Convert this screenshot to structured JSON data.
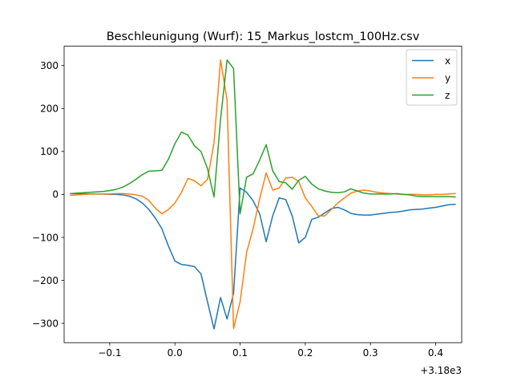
{
  "chart_data": {
    "type": "line",
    "title": "Beschleunigung (Wurf): 15_Markus_lostcm_100Hz.csv",
    "xlabel": "",
    "ylabel": "",
    "x_offset_label": "+3.18e3",
    "xlim": [
      -0.17,
      0.44
    ],
    "ylim": [
      -345,
      345
    ],
    "xticks": [
      -0.1,
      0.0,
      0.1,
      0.2,
      0.3,
      0.4
    ],
    "xtick_labels": [
      "−0.1",
      "0.0",
      "0.1",
      "0.2",
      "0.3",
      "0.4"
    ],
    "yticks": [
      -300,
      -200,
      -100,
      0,
      100,
      200,
      300
    ],
    "ytick_labels": [
      "−300",
      "−200",
      "−100",
      "0",
      "100",
      "200",
      "300"
    ],
    "grid": false,
    "legend_position": "top-right",
    "x": [
      -0.16,
      -0.15,
      -0.14,
      -0.13,
      -0.12,
      -0.11,
      -0.1,
      -0.09,
      -0.08,
      -0.07,
      -0.06,
      -0.05,
      -0.04,
      -0.03,
      -0.02,
      -0.01,
      0.0,
      0.01,
      0.02,
      0.03,
      0.04,
      0.05,
      0.06,
      0.07,
      0.08,
      0.09,
      0.1,
      0.11,
      0.12,
      0.13,
      0.14,
      0.15,
      0.16,
      0.17,
      0.18,
      0.19,
      0.2,
      0.21,
      0.22,
      0.23,
      0.24,
      0.25,
      0.26,
      0.27,
      0.28,
      0.29,
      0.3,
      0.31,
      0.32,
      0.33,
      0.34,
      0.35,
      0.36,
      0.37,
      0.38,
      0.39,
      0.4,
      0.41,
      0.42,
      0.43
    ],
    "series": [
      {
        "name": "x",
        "color": "#1f77b4",
        "values": [
          2,
          2,
          2,
          1,
          1,
          1,
          0,
          0,
          -1,
          -4,
          -10,
          -20,
          -35,
          -55,
          -80,
          -120,
          -155,
          -163,
          -165,
          -168,
          -185,
          -250,
          -313,
          -240,
          -290,
          -230,
          15,
          5,
          -15,
          -45,
          -110,
          -50,
          -8,
          -12,
          -50,
          -113,
          -100,
          -58,
          -53,
          -43,
          -33,
          -30,
          -36,
          -44,
          -47,
          -48,
          -48,
          -46,
          -44,
          -42,
          -41,
          -39,
          -36,
          -35,
          -34,
          -32,
          -30,
          -27,
          -24,
          -23
        ]
      },
      {
        "name": "y",
        "color": "#ff7f0e",
        "values": [
          -2,
          -1,
          0,
          1,
          1,
          1,
          1,
          2,
          2,
          1,
          -1,
          -4,
          -14,
          -32,
          -45,
          -35,
          -20,
          5,
          37,
          32,
          20,
          35,
          120,
          313,
          220,
          -312,
          -250,
          -135,
          -80,
          -10,
          50,
          10,
          15,
          38,
          40,
          30,
          -8,
          -28,
          -50,
          -50,
          -35,
          -20,
          -8,
          3,
          8,
          10,
          8,
          5,
          3,
          2,
          1,
          0,
          0,
          0,
          -1,
          -1,
          0,
          0,
          1,
          2
        ]
      },
      {
        "name": "z",
        "color": "#2ca02c",
        "values": [
          2,
          3,
          4,
          5,
          6,
          7,
          9,
          12,
          17,
          25,
          35,
          46,
          54,
          55,
          56,
          82,
          118,
          145,
          138,
          113,
          100,
          60,
          -6,
          175,
          313,
          293,
          -45,
          40,
          48,
          80,
          116,
          55,
          30,
          27,
          12,
          33,
          42,
          24,
          13,
          8,
          5,
          4,
          6,
          13,
          8,
          3,
          1,
          1,
          1,
          1,
          2,
          0,
          -1,
          -4,
          -5,
          -5,
          -5,
          -5,
          -5,
          -6
        ]
      }
    ]
  }
}
